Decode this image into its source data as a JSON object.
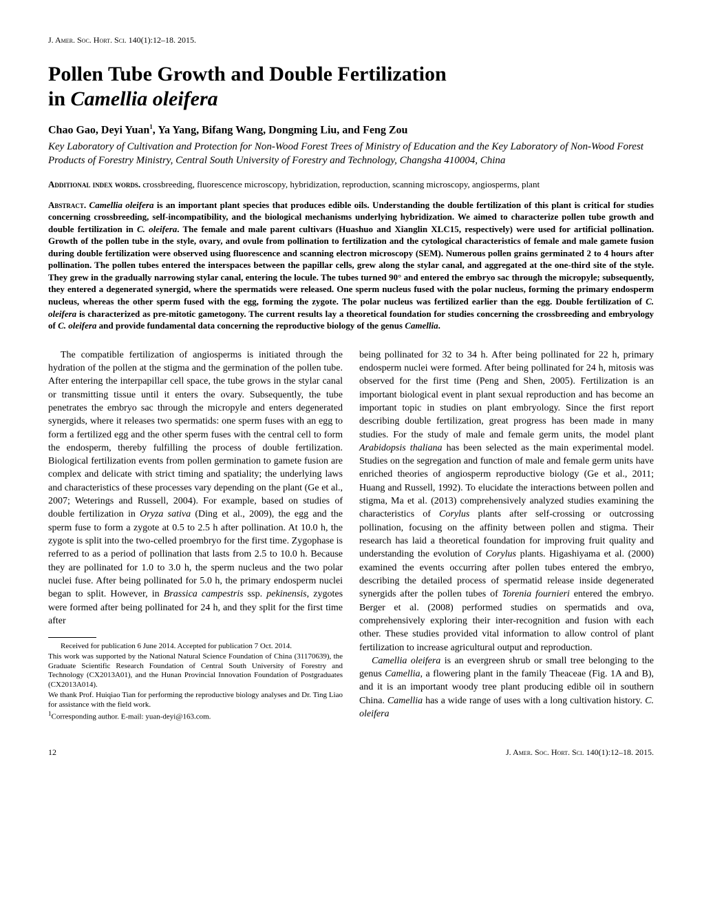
{
  "journal_header": "J. Amer. Soc. Hort. Sci. 140(1):12–18. 2015.",
  "title_line1": "Pollen Tube Growth and Double Fertilization",
  "title_line2": "in ",
  "title_italic": "Camellia oleifera",
  "authors_prefix": "Chao Gao, Deyi Yuan",
  "authors_sup": "1",
  "authors_suffix": ", Ya Yang, Bifang Wang, Dongming Liu, and Feng Zou",
  "affiliation": "Key Laboratory of Cultivation and Protection for Non-Wood Forest Trees of Ministry of Education and the Key Laboratory of Non-Wood Forest Products of Forestry Ministry, Central South University of Forestry and Technology, Changsha 410004, China",
  "keywords_label": "Additional index words.",
  "keywords_text": " crossbreeding, fluorescence microscopy, hybridization, reproduction, scanning microscopy, angiosperms, plant",
  "abstract_label": "Abstract.",
  "abstract_body": " Camellia oleifera is an important plant species that produces edible oils. Understanding the double fertilization of this plant is critical for studies concerning crossbreeding, self-incompatibility, and the biological mechanisms underlying hybridization. We aimed to characterize pollen tube growth and double fertilization in C. oleifera. The female and male parent cultivars (Huashuo and Xianglin XLC15, respectively) were used for artificial pollination. Growth of the pollen tube in the style, ovary, and ovule from pollination to fertilization and the cytological characteristics of female and male gamete fusion during double fertilization were observed using fluorescence and scanning electron microscopy (SEM). Numerous pollen grains germinated 2 to 4 hours after pollination. The pollen tubes entered the interspaces between the papillar cells, grew along the stylar canal, and aggregated at the one-third site of the style. They grew in the gradually narrowing stylar canal, entering the locule. The tubes turned 90° and entered the embryo sac through the micropyle; subsequently, they entered a degenerated synergid, where the spermatids were released. One sperm nucleus fused with the polar nucleus, forming the primary endosperm nucleus, whereas the other sperm fused with the egg, forming the zygote. The polar nucleus was fertilized earlier than the egg. Double fertilization of C. oleifera is characterized as pre-mitotic gametogony. The current results lay a theoretical foundation for studies concerning the crossbreeding and embryology of C. oleifera and provide fundamental data concerning the reproductive biology of the genus Camellia.",
  "col1_p1": "The compatible fertilization of angiosperms is initiated through the hydration of the pollen at the stigma and the germination of the pollen tube. After entering the interpapillar cell space, the tube grows in the stylar canal or transmitting tissue until it enters the ovary. Subsequently, the tube penetrates the embryo sac through the micropyle and enters degenerated synergids, where it releases two spermatids: one sperm fuses with an egg to form a fertilized egg and the other sperm fuses with the central cell to form the endosperm, thereby fulfilling the process of double fertilization. Biological fertilization events from pollen germination to gamete fusion are complex and delicate with strict timing and spatiality; the underlying laws and characteristics of these processes vary depending on the plant (Ge et al., 2007; Weterings and Russell, 2004). For example, based on studies of double fertilization in Oryza sativa (Ding et al., 2009), the egg and the sperm fuse to form a zygote at 0.5 to 2.5 h after pollination. At 10.0 h, the zygote is split into the two-celled proembryo for the first time. Zygophase is referred to as a period of pollination that lasts from 2.5 to 10.0 h. Because they are pollinated for 1.0 to 3.0 h, the sperm nucleus and the two polar nuclei fuse. After being pollinated for 5.0 h, the primary endosperm nuclei began to split. However, in Brassica campestris ssp. pekinensis, zygotes were formed after being pollinated for 24 h, and they split for the first time after",
  "col2_p1": "being pollinated for 32 to 34 h. After being pollinated for 22 h, primary endosperm nuclei were formed. After being pollinated for 24 h, mitosis was observed for the first time (Peng and Shen, 2005). Fertilization is an important biological event in plant sexual reproduction and has become an important topic in studies on plant embryology. Since the first report describing double fertilization, great progress has been made in many studies. For the study of male and female germ units, the model plant Arabidopsis thaliana has been selected as the main experimental model. Studies on the segregation and function of male and female germ units have enriched theories of angiosperm reproductive biology (Ge et al., 2011; Huang and Russell, 1992). To elucidate the interactions between pollen and stigma, Ma et al. (2013) comprehensively analyzed studies examining the characteristics of Corylus plants after self-crossing or outcrossing pollination, focusing on the affinity between pollen and stigma. Their research has laid a theoretical foundation for improving fruit quality and understanding the evolution of Corylus plants. Higashiyama et al. (2000) examined the events occurring after pollen tubes entered the embryo, describing the detailed process of spermatid release inside degenerated synergids after the pollen tubes of Torenia fournieri entered the embryo. Berger et al. (2008) performed studies on spermatids and ova, comprehensively exploring their inter-recognition and fusion with each other. These studies provided vital information to allow control of plant fertilization to increase agricultural output and reproduction.",
  "col2_p2": "Camellia oleifera is an evergreen shrub or small tree belonging to the genus Camellia, a flowering plant in the family Theaceae (Fig. 1A and B), and it is an important woody tree plant producing edible oil in southern China. Camellia has a wide range of uses with a long cultivation history. C. oleifera",
  "footnote1": "Received for publication 6 June 2014. Accepted for publication 7 Oct. 2014.",
  "footnote2": "This work was supported by the National Natural Science Foundation of China (31170639), the Graduate Scientific Research Foundation of Central South University of Forestry and Technology (CX2013A01), and the Hunan Provincial Innovation Foundation of Postgraduates (CX2013A014).",
  "footnote3": "We thank Prof. Huiqiao Tian for performing the reproductive biology analyses and Dr. Ting Liao for assistance with the field work.",
  "footnote4_sup": "1",
  "footnote4": "Corresponding author. E-mail: yuan-deyi@163.com.",
  "page_number": "12",
  "footer_journal": "J. Amer. Soc. Hort. Sci. 140(1):12–18. 2015."
}
